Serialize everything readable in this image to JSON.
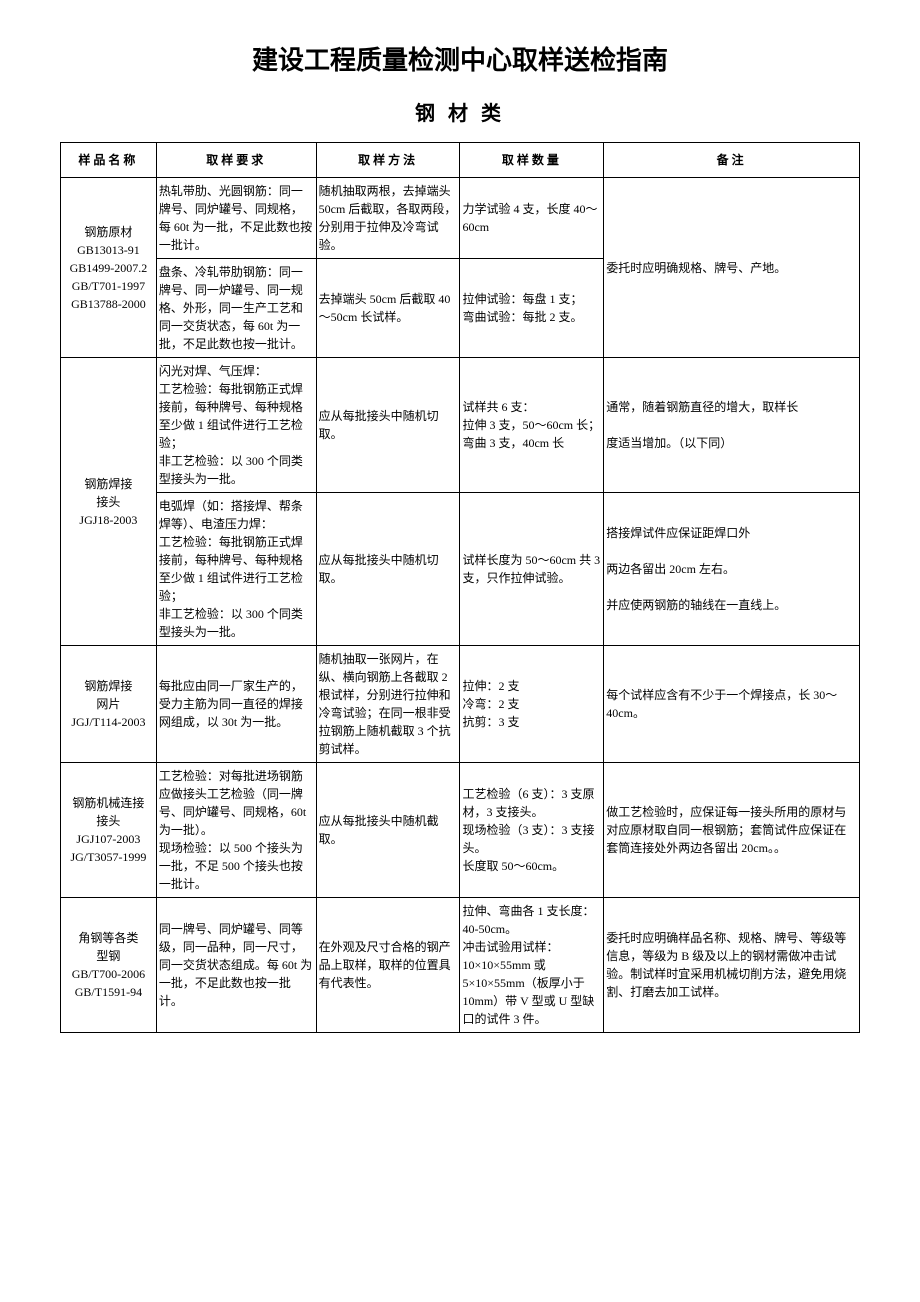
{
  "title": "建设工程质量检测中心取样送检指南",
  "subtitle": "钢 材 类",
  "headers": {
    "c1": "样品名称",
    "c2": "取样要求",
    "c3": "取样方法",
    "c4": "取样数量",
    "c5": "备注"
  },
  "rows": {
    "r1": {
      "name": "钢筋原材\nGB13013-91\nGB1499-2007.2\nGB/T701-1997\nGB13788-2000",
      "req_a": "热轧带肋、光圆钢筋：同一牌号、同炉罐号、同规格，每 60t 为一批，不足此数也按一批计。",
      "method_a": "随机抽取两根，去掉端头 50cm 后截取，各取两段，分别用于拉伸及冷弯试验。",
      "qty_a": "力学试验 4 支，长度 40～60cm",
      "req_b": "盘条、冷轧带肋钢筋：同一牌号、同一炉罐号、同一规格、外形，同一生产工艺和同一交货状态，每 60t 为一批，不足此数也按一批计。",
      "method_b": "去掉端头 50cm 后截取 40～50cm 长试样。",
      "qty_b": "拉伸试验：每盘 1 支；\n弯曲试验：每批 2 支。",
      "note": "委托时应明确规格、牌号、产地。"
    },
    "r2": {
      "name": "钢筋焊接\n接头\nJGJ18-2003",
      "req_a": "闪光对焊、气压焊：\n工艺检验：每批钢筋正式焊接前，每种牌号、每种规格至少做 1 组试件进行工艺检验；\n非工艺检验：以 300 个同类型接头为一批。",
      "method_a": "应从每批接头中随机切取。",
      "qty_a": "试样共 6 支：\n拉伸 3 支，50～60cm 长；\n弯曲 3 支，40cm 长",
      "note_a": "通常，随着钢筋直径的增大，取样长\n\n度适当增加。（以下同）",
      "req_b": "电弧焊（如：搭接焊、帮条焊等）、电渣压力焊：\n工艺检验：每批钢筋正式焊接前，每种牌号、每种规格至少做 1 组试件进行工艺检验；\n非工艺检验：以 300 个同类型接头为一批。",
      "method_b": "应从每批接头中随机切取。",
      "qty_b": "试样长度为 50～60cm 共 3 支，只作拉伸试验。",
      "note_b": "搭接焊试件应保证距焊口外\n\n两边各留出 20cm 左右。\n\n并应使两钢筋的轴线在一直线上。"
    },
    "r3": {
      "name": "钢筋焊接\n网片\nJGJ/T114-2003",
      "req": "每批应由同一厂家生产的，受力主筋为同一直径的焊接网组成，以 30t 为一批。",
      "method": "随机抽取一张网片，在纵、横向钢筋上各截取 2 根试样，分别进行拉伸和冷弯试验；在同一根非受拉钢筋上随机截取 3 个抗剪试样。",
      "qty": "拉伸：2 支\n冷弯：2 支\n抗剪：3 支",
      "note": "每个试样应含有不少于一个焊接点，长 30～40cm。"
    },
    "r4": {
      "name": "钢筋机械连接\n接头\nJGJ107-2003\nJG/T3057-1999",
      "req": "工艺检验：对每批进场钢筋应做接头工艺检验（同一牌号、同炉罐号、同规格，60t 为一批）。\n现场检验：以 500 个接头为一批，不足 500 个接头也按一批计。",
      "method": "应从每批接头中随机截取。",
      "qty": "工艺检验（6 支）：3 支原材，3 支接头。\n现场检验（3 支）：3 支接头。\n长度取 50～60cm。",
      "note": "做工艺检验时，应保证每一接头所用的原材与对应原材取自同一根钢筋；套筒试件应保证在套筒连接处外两边各留出 20cm。。"
    },
    "r5": {
      "name": "角钢等各类\n型钢\nGB/T700-2006\nGB/T1591-94",
      "req": "同一牌号、同炉罐号、同等级，同一品种，同一尺寸，同一交货状态组成。每 60t 为一批，不足此数也按一批计。",
      "method": "在外观及尺寸合格的钢产品上取样，取样的位置具有代表性。",
      "qty": "拉伸、弯曲各 1 支长度：40-50cm。\n冲击试验用试样：10×10×55mm 或 5×10×55mm（板厚小于 10mm）带 V 型或 U 型缺口的试件 3 件。",
      "note": "委托时应明确样品名称、规格、牌号、等级等信息，等级为 B 级及以上的钢材需做冲击试验。制试样时宜采用机械切削方法，避免用烧割、打磨去加工试样。"
    }
  }
}
